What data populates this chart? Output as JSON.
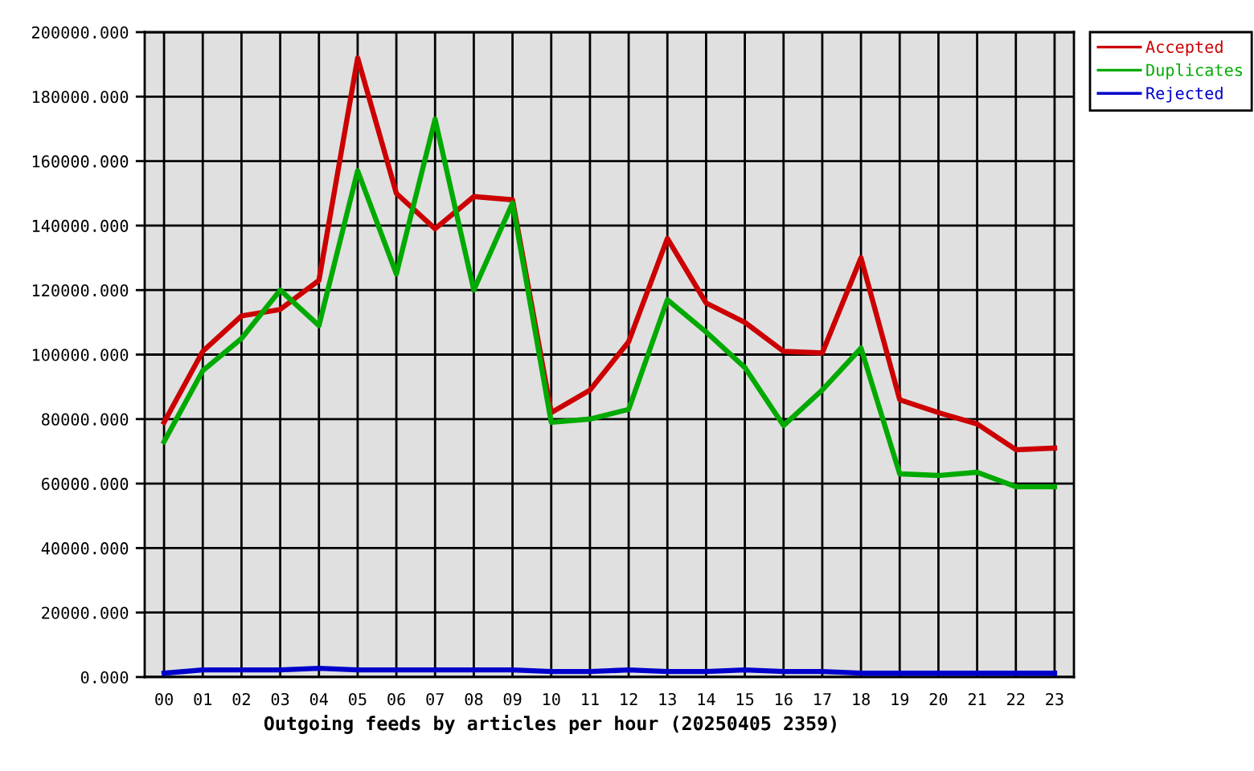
{
  "chart_data": {
    "type": "line",
    "xlabel": "Outgoing feeds by articles per hour (20250405 2359)",
    "categories": [
      "00",
      "01",
      "02",
      "03",
      "04",
      "05",
      "06",
      "07",
      "08",
      "09",
      "10",
      "11",
      "12",
      "13",
      "14",
      "15",
      "16",
      "17",
      "18",
      "19",
      "20",
      "21",
      "22",
      "23"
    ],
    "series": [
      {
        "name": "Accepted",
        "color": "#cc0000",
        "values": [
          79000,
          101000,
          112000,
          114000,
          123000,
          192000,
          150000,
          139000,
          149000,
          148000,
          82000,
          89000,
          104000,
          136000,
          116000,
          110000,
          101000,
          100500,
          130000,
          86000,
          82000,
          78500,
          70500,
          71000
        ]
      },
      {
        "name": "Duplicates",
        "color": "#00aa00",
        "values": [
          73000,
          95000,
          105000,
          120000,
          109000,
          157000,
          125000,
          173000,
          120000,
          147000,
          79000,
          80000,
          83000,
          117000,
          107000,
          96000,
          78000,
          89000,
          102000,
          63000,
          62500,
          63500,
          59000,
          59000
        ]
      },
      {
        "name": "Rejected",
        "color": "#0000cc",
        "values": [
          1200,
          2200,
          2200,
          2200,
          2700,
          2200,
          2200,
          2200,
          2200,
          2200,
          1700,
          1700,
          2200,
          1700,
          1700,
          2200,
          1700,
          1700,
          1200,
          1200,
          1200,
          1200,
          1200,
          1200
        ]
      }
    ],
    "ylim": [
      0,
      200000
    ],
    "yticks": [
      {
        "value": 0,
        "label": "0.000"
      },
      {
        "value": 20000,
        "label": "20000.000"
      },
      {
        "value": 40000,
        "label": "40000.000"
      },
      {
        "value": 60000,
        "label": "60000.000"
      },
      {
        "value": 80000,
        "label": "80000.000"
      },
      {
        "value": 100000,
        "label": "100000.000"
      },
      {
        "value": 120000,
        "label": "120000.000"
      },
      {
        "value": 140000,
        "label": "140000.000"
      },
      {
        "value": 160000,
        "label": "160000.000"
      },
      {
        "value": 180000,
        "label": "180000.000"
      },
      {
        "value": 200000,
        "label": "200000.000"
      }
    ],
    "grid": true,
    "legend": "top right",
    "line_style": "solid"
  }
}
